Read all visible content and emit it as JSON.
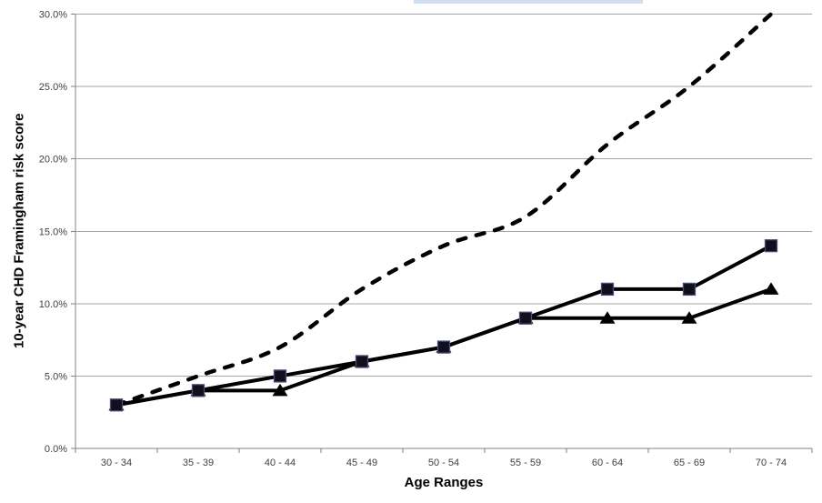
{
  "window": {
    "background": "#ffffff"
  },
  "decor": {
    "cropped_title_strip_color": "#c9d9ef",
    "note": "partially cropped highlighted chart title at top edge"
  },
  "chart_data": {
    "type": "line",
    "title": "",
    "xlabel": "Age Ranges",
    "ylabel": "10-year CHD Framingham risk score",
    "categories": [
      "30 - 34",
      "35 - 39",
      "40 - 44",
      "45 - 49",
      "50 - 54",
      "55 - 59",
      "60 - 64",
      "65 - 69",
      "70 - 74"
    ],
    "series": [
      {
        "name": "dashed-line-series",
        "line": "dashed",
        "marker": "none",
        "smooth": true,
        "values": [
          3,
          5,
          7,
          11,
          14,
          16,
          21,
          25,
          30
        ]
      },
      {
        "name": "triangle-marker-series",
        "line": "solid",
        "marker": "triangle",
        "smooth": false,
        "values": [
          3,
          4,
          4,
          6,
          7,
          9,
          9,
          9,
          11
        ]
      },
      {
        "name": "square-marker-series",
        "line": "solid",
        "marker": "square",
        "smooth": false,
        "values": [
          3,
          4,
          5,
          6,
          7,
          9,
          11,
          11,
          14
        ]
      }
    ],
    "ylim": [
      0,
      30
    ],
    "yticks": [
      0,
      5,
      10,
      15,
      20,
      25,
      30
    ],
    "ytick_labels": [
      "0.0%",
      "5.0%",
      "10.0%",
      "15.0%",
      "20.0%",
      "25.0%",
      "30.0%"
    ],
    "grid": "horizontal",
    "legend": "none",
    "colors": {
      "line": "#000000",
      "square_fill": "#10101c",
      "square_border": "#4c4c78",
      "triangle_fill": "#000000",
      "grid": "#a6a6a6",
      "axis": "#808080",
      "tick_label": "#404040"
    }
  }
}
